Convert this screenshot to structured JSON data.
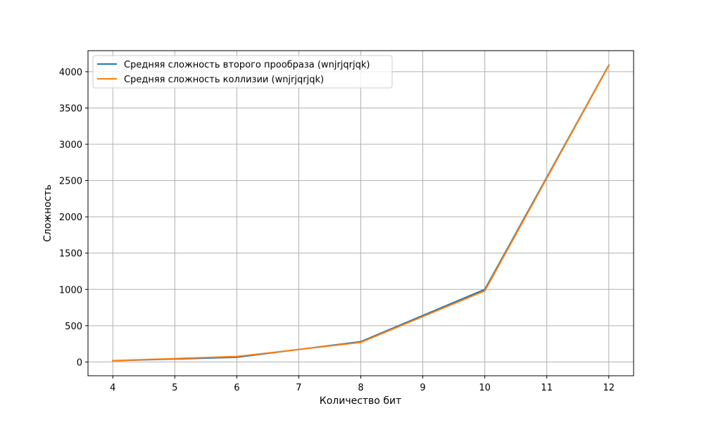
{
  "chart_data": {
    "type": "line",
    "title": "",
    "xlabel": "Количество бит",
    "ylabel": "Сложность",
    "xlim": [
      3.6,
      12.4
    ],
    "ylim": [
      -190,
      4290
    ],
    "x": [
      4,
      6,
      8,
      10,
      12
    ],
    "xticks": [
      4,
      5,
      6,
      7,
      8,
      9,
      10,
      11,
      12
    ],
    "yticks": [
      0,
      500,
      1000,
      1500,
      2000,
      2500,
      3000,
      3500,
      4000
    ],
    "grid": true,
    "legend_position": "upper-left",
    "series": [
      {
        "name": "Средняя сложность второго прообраза (wnjrjqrjqk)",
        "color": "#1f77b4",
        "values": [
          16,
          65,
          280,
          1000,
          4090
        ]
      },
      {
        "name": "Средняя сложность коллизии (wnjrjqrjqk)",
        "color": "#ff7f0e",
        "values": [
          18,
          75,
          270,
          980,
          4085
        ]
      }
    ]
  }
}
